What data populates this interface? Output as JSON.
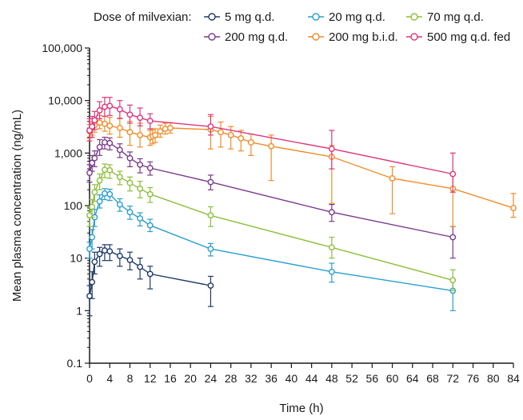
{
  "chart_data": {
    "type": "line",
    "title": "",
    "xlabel": "Time (h)",
    "ylabel": "Mean plasma concentration (ng/mL)",
    "y_scale": "log",
    "ylim": [
      0.1,
      100000
    ],
    "xlim": [
      0,
      84
    ],
    "x_ticks": [
      0,
      4,
      8,
      12,
      16,
      20,
      24,
      28,
      32,
      36,
      40,
      44,
      48,
      52,
      56,
      60,
      64,
      68,
      72,
      76,
      80,
      84
    ],
    "x_tick_labels": [
      "0",
      "4",
      "8",
      "12",
      "16",
      "20",
      "24",
      "28",
      "32",
      "36",
      "40",
      "44",
      "48",
      "52",
      "56",
      "60",
      "64",
      "68",
      "72",
      "76",
      "80",
      "84"
    ],
    "y_ticks": [
      0.1,
      1,
      10,
      100,
      1000,
      10000,
      100000
    ],
    "y_tick_labels": [
      "0.1",
      "1",
      "10",
      "100",
      "1,000",
      "10,000",
      "100,000"
    ],
    "grid": false,
    "legend": {
      "title": "Dose of milvexian:",
      "placement": "top"
    },
    "series": [
      {
        "name": "5 mg q.d.",
        "color": "#1f3a68",
        "x": [
          0,
          0.5,
          1,
          2,
          3,
          4,
          6,
          8,
          10,
          12,
          24
        ],
        "y": [
          1.9,
          3.5,
          8.5,
          12,
          14,
          13.5,
          11,
          9.2,
          6.8,
          5,
          3
        ],
        "err_low": [
          0.8,
          1.7,
          5,
          7,
          9,
          9,
          7,
          6,
          4,
          2.6,
          1.2
        ],
        "err_high": [
          3,
          5.5,
          13,
          16,
          18,
          18,
          15,
          13,
          10,
          7,
          4.5
        ]
      },
      {
        "name": "20 mg q.d.",
        "color": "#2a9fd0",
        "x": [
          0,
          0.5,
          1,
          2,
          3,
          4,
          6,
          8,
          10,
          12,
          24,
          48,
          72
        ],
        "y": [
          15,
          25,
          60,
          120,
          170,
          165,
          105,
          75,
          57,
          42,
          15,
          5.5,
          2.4
        ],
        "err_low": [
          10,
          15,
          40,
          90,
          130,
          125,
          78,
          55,
          41,
          32,
          11,
          3.5,
          1
        ],
        "err_high": [
          20,
          35,
          85,
          160,
          210,
          205,
          135,
          98,
          73,
          55,
          19,
          8,
          3.8
        ]
      },
      {
        "name": "70 mg q.d.",
        "color": "#8dbf3a",
        "x": [
          0,
          0.5,
          1,
          2,
          3,
          4,
          6,
          8,
          10,
          12,
          24,
          48,
          72
        ],
        "y": [
          65,
          95,
          180,
          300,
          480,
          470,
          350,
          270,
          210,
          165,
          65,
          16,
          3.8
        ],
        "err_low": [
          40,
          60,
          120,
          200,
          340,
          330,
          250,
          190,
          140,
          115,
          40,
          10,
          2.4
        ],
        "err_high": [
          95,
          130,
          250,
          400,
          620,
          600,
          450,
          350,
          290,
          220,
          95,
          25,
          6
        ]
      },
      {
        "name": "200 mg q.d.",
        "color": "#7b3a8c",
        "x": [
          0,
          0.5,
          1,
          2,
          3,
          4,
          6,
          8,
          10,
          12,
          24,
          48,
          72
        ],
        "y": [
          420,
          650,
          800,
          1300,
          1600,
          1550,
          1150,
          800,
          600,
          520,
          280,
          75,
          25
        ],
        "err_low": [
          280,
          450,
          550,
          900,
          1200,
          1150,
          820,
          550,
          420,
          380,
          200,
          50,
          10
        ],
        "err_high": [
          600,
          900,
          1100,
          1800,
          2000,
          1950,
          1500,
          1050,
          780,
          680,
          380,
          105,
          40
        ]
      },
      {
        "name": "200 mg b.i.d.",
        "color": "#f28c28",
        "x": [
          0,
          0.5,
          1,
          2,
          3,
          4,
          6,
          8,
          10,
          12,
          12.5,
          13,
          14,
          15,
          16,
          24,
          26,
          28,
          30,
          32,
          36,
          48,
          60,
          72,
          84
        ],
        "y": [
          2600,
          3000,
          3400,
          3800,
          3600,
          3300,
          3000,
          2500,
          2200,
          2000,
          2100,
          2200,
          2600,
          2900,
          3000,
          2800,
          2500,
          2200,
          1900,
          1600,
          1350,
          850,
          330,
          210,
          90
        ],
        "err_low": [
          1900,
          2200,
          2500,
          2900,
          2600,
          2300,
          2000,
          1400,
          1300,
          1400,
          1500,
          1600,
          2000,
          2300,
          2400,
          1200,
          1300,
          1200,
          1100,
          900,
          300,
          110,
          70,
          40,
          60
        ],
        "err_high": [
          3500,
          3900,
          4600,
          5200,
          5000,
          4800,
          4500,
          4000,
          3700,
          2700,
          2800,
          2900,
          3400,
          3700,
          3800,
          5000,
          3900,
          3200,
          2700,
          2300,
          2200,
          1400,
          550,
          400,
          170
        ]
      },
      {
        "name": "500 mg q.d. fed",
        "color": "#e0357c",
        "x": [
          0,
          0.5,
          1,
          2,
          3,
          4,
          6,
          8,
          10,
          12,
          24,
          48,
          72
        ],
        "y": [
          2700,
          3200,
          4200,
          6500,
          7600,
          7900,
          6800,
          5400,
          4700,
          4100,
          3200,
          1200,
          400
        ],
        "err_low": [
          1700,
          2000,
          2800,
          4500,
          5000,
          5200,
          4600,
          3700,
          3300,
          2900,
          2200,
          500,
          180
        ],
        "err_high": [
          4500,
          5000,
          6200,
          9500,
          11500,
          11500,
          10000,
          8200,
          7200,
          5600,
          5400,
          2700,
          1000
        ]
      }
    ]
  }
}
